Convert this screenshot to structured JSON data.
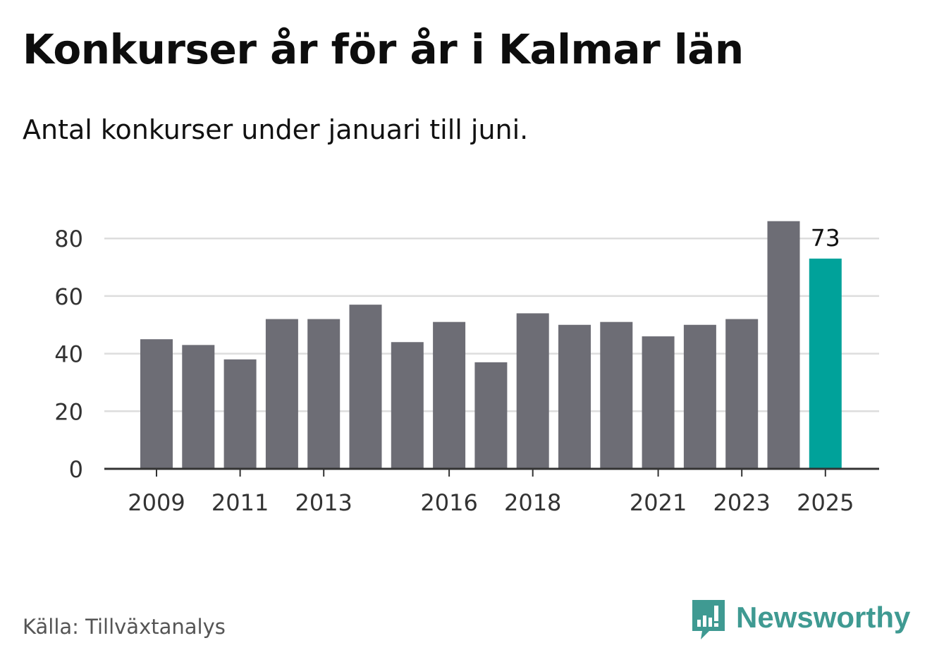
{
  "title": "Konkurser år för år i Kalmar län",
  "subtitle": "Antal konkurser under januari till juni.",
  "source": "Källa: Tillväxtanalys",
  "brand": {
    "name": "Newsworthy",
    "icon": "newsworthy-logo-icon",
    "color": "#3f9a92"
  },
  "colors": {
    "bar": "#6d6d75",
    "highlight": "#00a29a",
    "grid": "#dddddd",
    "axis": "#333333"
  },
  "chart_data": {
    "type": "bar",
    "title": "Konkurser år för år i Kalmar län",
    "subtitle": "Antal konkurser under januari till juni.",
    "categories": [
      "2009",
      "2010",
      "2011",
      "2012",
      "2013",
      "2014",
      "2015",
      "2016",
      "2017",
      "2018",
      "2019",
      "2020",
      "2021",
      "2022",
      "2023",
      "2024",
      "2025"
    ],
    "values": [
      45,
      43,
      38,
      52,
      52,
      57,
      44,
      51,
      37,
      54,
      50,
      51,
      46,
      50,
      52,
      86,
      73
    ],
    "x_tick_labels": [
      "2009",
      "2011",
      "2013",
      "2016",
      "2018",
      "2021",
      "2023",
      "2025"
    ],
    "y_ticks": [
      0,
      20,
      40,
      60,
      80
    ],
    "ylim": [
      0,
      86
    ],
    "grid": true,
    "highlight": {
      "category": "2025",
      "label": "73"
    }
  }
}
